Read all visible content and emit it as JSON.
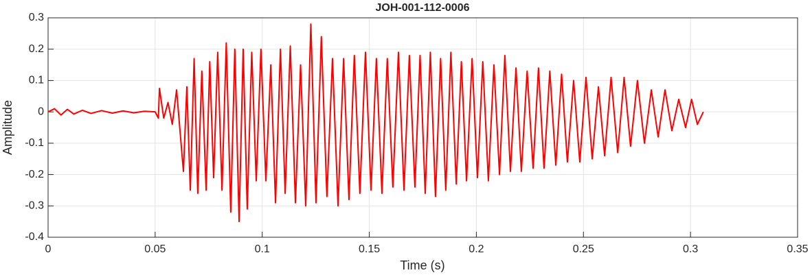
{
  "chart_data": {
    "type": "line",
    "title": "JOH-001-112-0006",
    "x_label": "Time (s)",
    "y_label": "Amplitude",
    "x": [
      0,
      0.003,
      0.006,
      0.009,
      0.012,
      0.016,
      0.02,
      0.025,
      0.03,
      0.035,
      0.04,
      0.045,
      0.05,
      0.0515,
      0.052,
      0.054,
      0.056,
      0.058,
      0.06,
      0.0632,
      0.0648,
      0.0664,
      0.0682,
      0.0699,
      0.0718,
      0.0738,
      0.0755,
      0.0773,
      0.0792,
      0.0812,
      0.0832,
      0.0853,
      0.0872,
      0.0892,
      0.0911,
      0.093,
      0.0951,
      0.0972,
      0.0994,
      0.1017,
      0.104,
      0.1062,
      0.1085,
      0.1107,
      0.1131,
      0.1155,
      0.1179,
      0.1203,
      0.1227,
      0.1251,
      0.1276,
      0.1302,
      0.1328,
      0.1354,
      0.138,
      0.1405,
      0.143,
      0.1456,
      0.1482,
      0.1508,
      0.1533,
      0.1559,
      0.1584,
      0.161,
      0.1636,
      0.1662,
      0.1687,
      0.1713,
      0.1737,
      0.1761,
      0.1785,
      0.1809,
      0.1833,
      0.1857,
      0.1881,
      0.1906,
      0.193,
      0.1954,
      0.198,
      0.2005,
      0.203,
      0.2056,
      0.2082,
      0.2108,
      0.2133,
      0.2159,
      0.2185,
      0.221,
      0.2237,
      0.2265,
      0.229,
      0.2316,
      0.2343,
      0.2371,
      0.2398,
      0.2425,
      0.2454,
      0.2483,
      0.2512,
      0.2541,
      0.257,
      0.2599,
      0.2629,
      0.266,
      0.269,
      0.272,
      0.2752,
      0.2785,
      0.2817,
      0.2849,
      0.2881,
      0.2913,
      0.2945,
      0.2977,
      0.3005,
      0.3032,
      0.306
    ],
    "xlim": [
      0,
      0.35
    ],
    "xticks": [
      0,
      0.05,
      0.1,
      0.15,
      0.2,
      0.25,
      0.3,
      0.35
    ],
    "ylim": [
      -0.4,
      0.3
    ],
    "yticks": [
      -0.4,
      -0.3,
      -0.2,
      -0.1,
      0,
      0.1,
      0.2,
      0.3
    ],
    "grid": true,
    "series": [
      {
        "name": "Amplitude",
        "color": "#ff0000",
        "values": [
          0,
          0.01,
          -0.01,
          0.008,
          -0.007,
          0.005,
          -0.005,
          0.004,
          -0.004,
          0.003,
          -0.003,
          0.002,
          0,
          -0.02,
          0.075,
          -0.02,
          0.03,
          -0.04,
          0.07,
          -0.19,
          0.08,
          -0.25,
          0.17,
          -0.26,
          0.13,
          -0.25,
          0.16,
          -0.21,
          0.19,
          -0.25,
          0.22,
          -0.32,
          0.2,
          -0.35,
          0.2,
          -0.31,
          0.19,
          -0.22,
          0.2,
          -0.22,
          0.15,
          -0.29,
          0.2,
          -0.26,
          0.21,
          -0.29,
          0.15,
          -0.3,
          0.28,
          -0.29,
          0.24,
          -0.27,
          0.17,
          -0.3,
          0.17,
          -0.28,
          0.18,
          -0.26,
          0.19,
          -0.25,
          0.17,
          -0.26,
          0.17,
          -0.24,
          0.19,
          -0.25,
          0.18,
          -0.24,
          0.18,
          -0.26,
          0.19,
          -0.27,
          0.17,
          -0.25,
          0.19,
          -0.23,
          0.16,
          -0.22,
          0.17,
          -0.21,
          0.16,
          -0.22,
          0.15,
          -0.2,
          0.18,
          -0.19,
          0.14,
          -0.19,
          0.13,
          -0.18,
          0.14,
          -0.18,
          0.13,
          -0.17,
          0.12,
          -0.16,
          0.1,
          -0.16,
          0.11,
          -0.15,
          0.08,
          -0.14,
          0.11,
          -0.13,
          0.11,
          -0.11,
          0.1,
          -0.1,
          0.07,
          -0.08,
          0.07,
          -0.06,
          0.04,
          -0.05,
          0.04,
          -0.04,
          0
        ]
      }
    ]
  }
}
